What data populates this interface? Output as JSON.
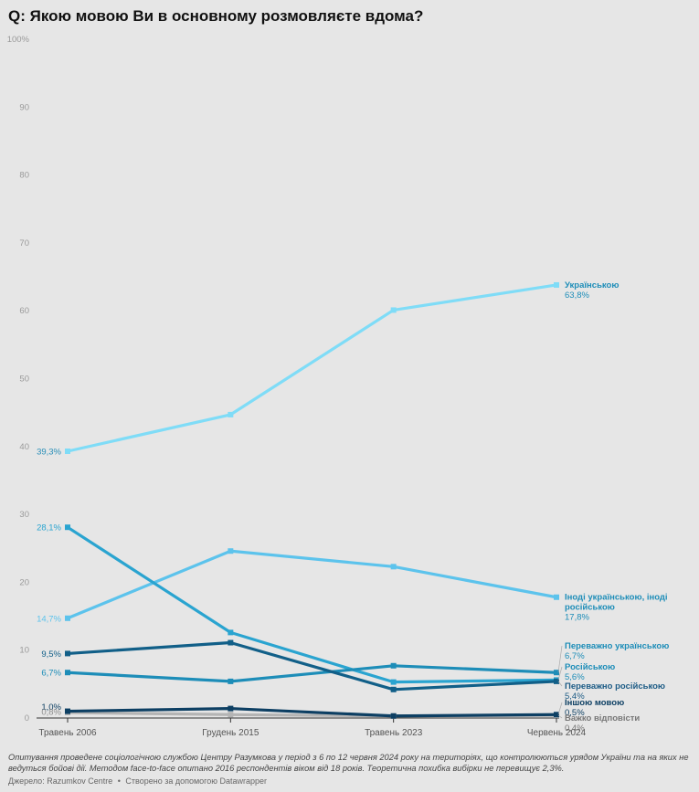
{
  "title": "Q: Якою мовою Ви в основному розмовляєте вдома?",
  "chart_data": {
    "type": "line",
    "title": "Q: Якою мовою Ви в основному розмовляєте вдома?",
    "categories": [
      "Травень 2006",
      "Грудень 2015",
      "Травень 2023",
      "Червень 2024"
    ],
    "ylim": [
      0,
      100
    ],
    "yticks": [
      {
        "value": 100,
        "label": "100%"
      },
      {
        "value": 90,
        "label": "90"
      },
      {
        "value": 80,
        "label": "80"
      },
      {
        "value": 70,
        "label": "70"
      },
      {
        "value": 60,
        "label": "60"
      },
      {
        "value": 50,
        "label": "50"
      },
      {
        "value": 40,
        "label": "40"
      },
      {
        "value": 30,
        "label": "30"
      },
      {
        "value": 20,
        "label": "20"
      },
      {
        "value": 10,
        "label": "10"
      },
      {
        "value": 0,
        "label": "0"
      }
    ],
    "series": [
      {
        "id": "ukrainian",
        "name": "Українською",
        "values": [
          39.3,
          44.7,
          60.1,
          63.8
        ],
        "color": "#7fdcf7",
        "start_label": "39,3%",
        "end_value_label": "63,8%"
      },
      {
        "id": "ukr-rus",
        "name": "Іноді українською, іноді російською",
        "end_name_lines": [
          "Іноді українською, іноді",
          "російською"
        ],
        "values": [
          14.7,
          24.6,
          22.3,
          17.8
        ],
        "color": "#5cc3ec",
        "start_label": "14,7%",
        "end_value_label": "17,8%"
      },
      {
        "id": "mostly-ukr",
        "name": "Переважно українською",
        "values": [
          6.7,
          5.4,
          7.7,
          6.7
        ],
        "color": "#1d8db8",
        "start_label": "6,7%",
        "end_value_label": "6,7%"
      },
      {
        "id": "russian",
        "name": "Російською",
        "values": [
          28.1,
          12.6,
          5.3,
          5.6
        ],
        "color": "#2aa4d0",
        "start_label": "28,1%",
        "end_value_label": "5,6%"
      },
      {
        "id": "mostly-rus",
        "name": "Переважно російською",
        "values": [
          9.5,
          11.1,
          4.2,
          5.4
        ],
        "color": "#115f88",
        "start_label": "9,5%",
        "end_value_label": "5,4%"
      },
      {
        "id": "other",
        "name": "Іншою мовою",
        "values": [
          1.0,
          1.4,
          0.3,
          0.5
        ],
        "color": "#0d3f63",
        "start_label": "1,0%",
        "end_value_label": "0,5%"
      },
      {
        "id": "hard-to-say",
        "name": "Важко відповісти",
        "values": [
          0.8,
          0.5,
          0.3,
          0.4
        ],
        "color": "#b4b4b4",
        "start_label": "0,8%",
        "end_value_label": "0,4%"
      }
    ]
  },
  "footer": {
    "note": "Опитування проведене соціологічною службою Центру Разумкова у період з 6 по 12 червня 2024 року на територіях, що контролюються урядом України та на яких не ведуться бойові дії. Методом face-to-face опитано 2016 респондентів віком від 18 років. Теоретична похибка вибірки не перевищує 2,3%.",
    "source": "Джерело: Razumkov Centre",
    "separator": "•",
    "credit": "Створено за допомогою Datawrapper"
  }
}
